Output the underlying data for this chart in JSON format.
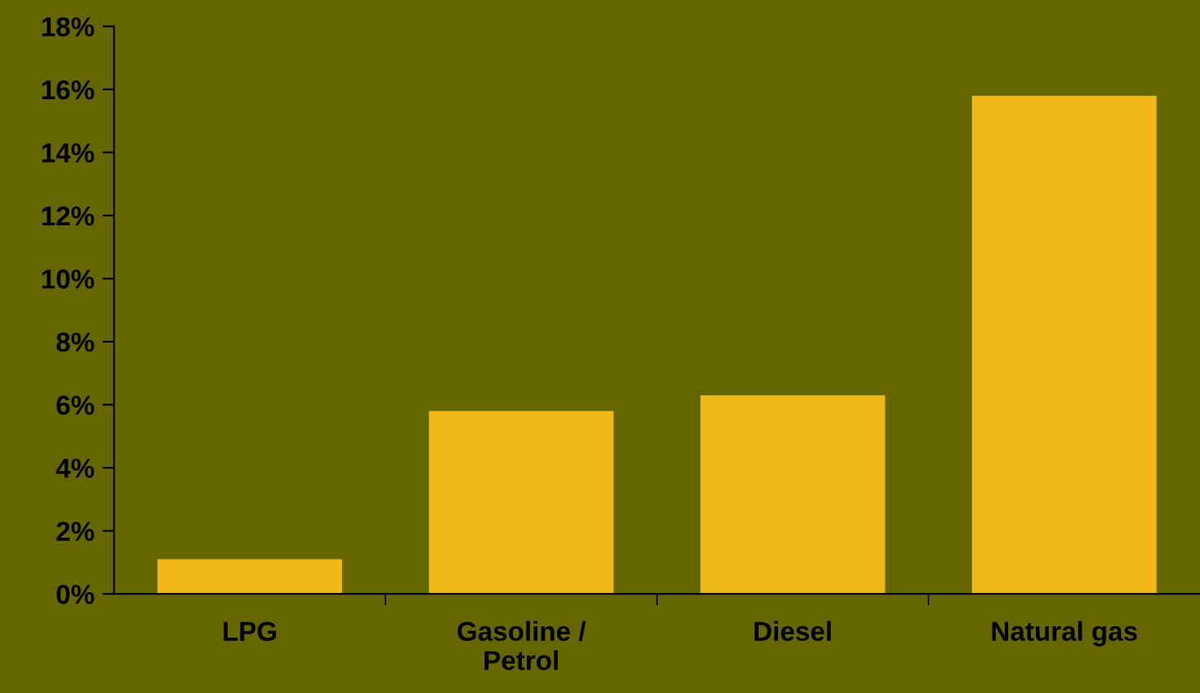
{
  "chart_data": {
    "type": "bar",
    "categories": [
      "LPG",
      "Gasoline /\nPetrol",
      "Diesel",
      "Natural gas"
    ],
    "values": [
      1.1,
      5.8,
      6.3,
      15.8
    ],
    "color": "#f0b818",
    "ylim": [
      0,
      18
    ],
    "yticks": [
      {
        "value": 0,
        "label": "0%"
      },
      {
        "value": 2,
        "label": "2%"
      },
      {
        "value": 4,
        "label": "4%"
      },
      {
        "value": 6,
        "label": "6%"
      },
      {
        "value": 8,
        "label": "8%"
      },
      {
        "value": 10,
        "label": "10%"
      },
      {
        "value": 12,
        "label": "12%"
      },
      {
        "value": 14,
        "label": "14%"
      },
      {
        "value": 16,
        "label": "16%"
      },
      {
        "value": 18,
        "label": "18%"
      }
    ],
    "grid": false,
    "legend": false
  }
}
